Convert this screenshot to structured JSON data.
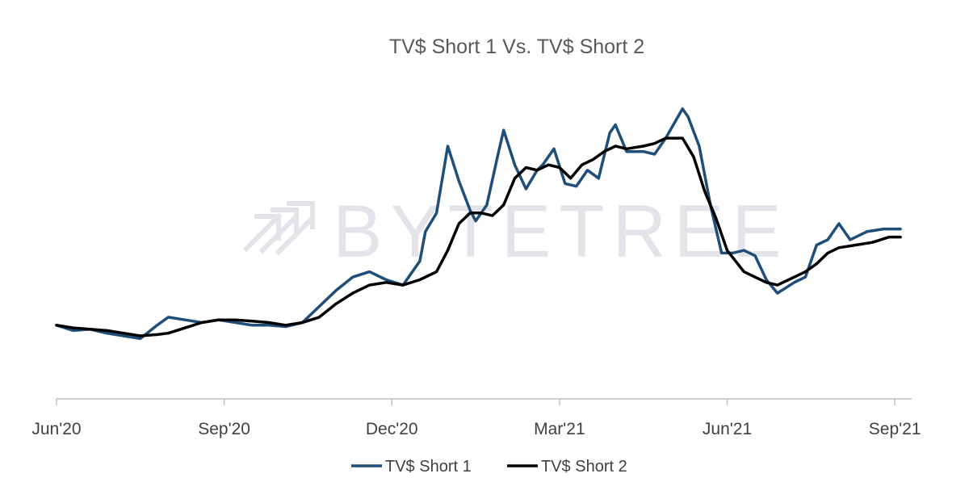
{
  "watermark": {
    "text": "BYTETREE",
    "icon": "bytetree-arrows-icon"
  },
  "chart_data": {
    "type": "line",
    "title": "TV$ Short 1 Vs. TV$ Short 2",
    "xlabel": "",
    "ylabel": "",
    "x_ticks": [
      "Jun'20",
      "Sep'20",
      "Dec'20",
      "Mar'21",
      "Jun'21",
      "Sep'21"
    ],
    "x_range": [
      0,
      15.2
    ],
    "ylim": [
      0,
      100
    ],
    "gridlines": false,
    "legend_position": "bottom-center",
    "series": [
      {
        "name": "TV$ Short 1",
        "color": "#1f4e79",
        "x": [
          0,
          0.3,
          0.6,
          0.9,
          1.2,
          1.5,
          1.8,
          2.0,
          2.3,
          2.6,
          2.9,
          3.2,
          3.5,
          3.8,
          4.1,
          4.4,
          4.7,
          5.0,
          5.3,
          5.6,
          5.9,
          6.2,
          6.5,
          6.6,
          6.8,
          7.0,
          7.2,
          7.4,
          7.5,
          7.7,
          7.9,
          8.0,
          8.2,
          8.4,
          8.6,
          8.7,
          8.9,
          9.1,
          9.3,
          9.5,
          9.7,
          9.9,
          10.0,
          10.2,
          10.5,
          10.7,
          10.9,
          11.2,
          11.3,
          11.5,
          11.7,
          11.9,
          12.1,
          12.3,
          12.5,
          12.7,
          12.9,
          13.2,
          13.4,
          13.6,
          13.8,
          14.0,
          14.2,
          14.5,
          14.8,
          15.1
        ],
        "values": [
          20,
          18,
          18.5,
          17,
          16,
          15,
          20,
          23,
          22,
          21,
          22,
          21,
          20,
          20,
          19.5,
          21,
          27,
          33,
          38,
          40,
          37,
          35,
          44,
          55,
          62,
          87,
          74,
          63,
          59,
          65,
          84,
          93,
          80,
          71,
          78,
          80,
          86,
          73,
          72,
          78,
          75,
          92,
          95,
          85,
          85,
          84,
          90,
          101,
          98,
          87,
          65,
          47,
          47,
          48,
          46,
          37,
          32,
          36,
          38,
          50,
          52,
          58,
          52,
          55,
          56,
          56
        ]
      },
      {
        "name": "TV$ Short 2",
        "color": "#000000",
        "x": [
          0,
          0.3,
          0.6,
          0.9,
          1.2,
          1.5,
          1.8,
          2.0,
          2.3,
          2.6,
          2.9,
          3.2,
          3.5,
          3.8,
          4.1,
          4.4,
          4.7,
          5.0,
          5.3,
          5.6,
          5.9,
          6.2,
          6.5,
          6.8,
          7.0,
          7.2,
          7.4,
          7.6,
          7.8,
          8.0,
          8.2,
          8.4,
          8.6,
          8.8,
          9.0,
          9.2,
          9.4,
          9.6,
          9.8,
          10.0,
          10.2,
          10.5,
          10.7,
          10.9,
          11.2,
          11.4,
          11.6,
          11.8,
          12.0,
          12.3,
          12.5,
          12.7,
          12.9,
          13.2,
          13.4,
          13.6,
          13.8,
          14.0,
          14.3,
          14.6,
          14.9,
          15.1
        ],
        "values": [
          20,
          19,
          18.5,
          18,
          17,
          16,
          16.5,
          17,
          19,
          21,
          22,
          22,
          21.5,
          21,
          20,
          21,
          23,
          28,
          32,
          35,
          36,
          35,
          37,
          40,
          48,
          58,
          62,
          62,
          61,
          65,
          75,
          79,
          78,
          80,
          79,
          75,
          80,
          82,
          85,
          87,
          86,
          87,
          88,
          90,
          90,
          83,
          70,
          60,
          48,
          40,
          38,
          36,
          35,
          38,
          40,
          43,
          47,
          49,
          50,
          51,
          53,
          53
        ]
      }
    ]
  }
}
